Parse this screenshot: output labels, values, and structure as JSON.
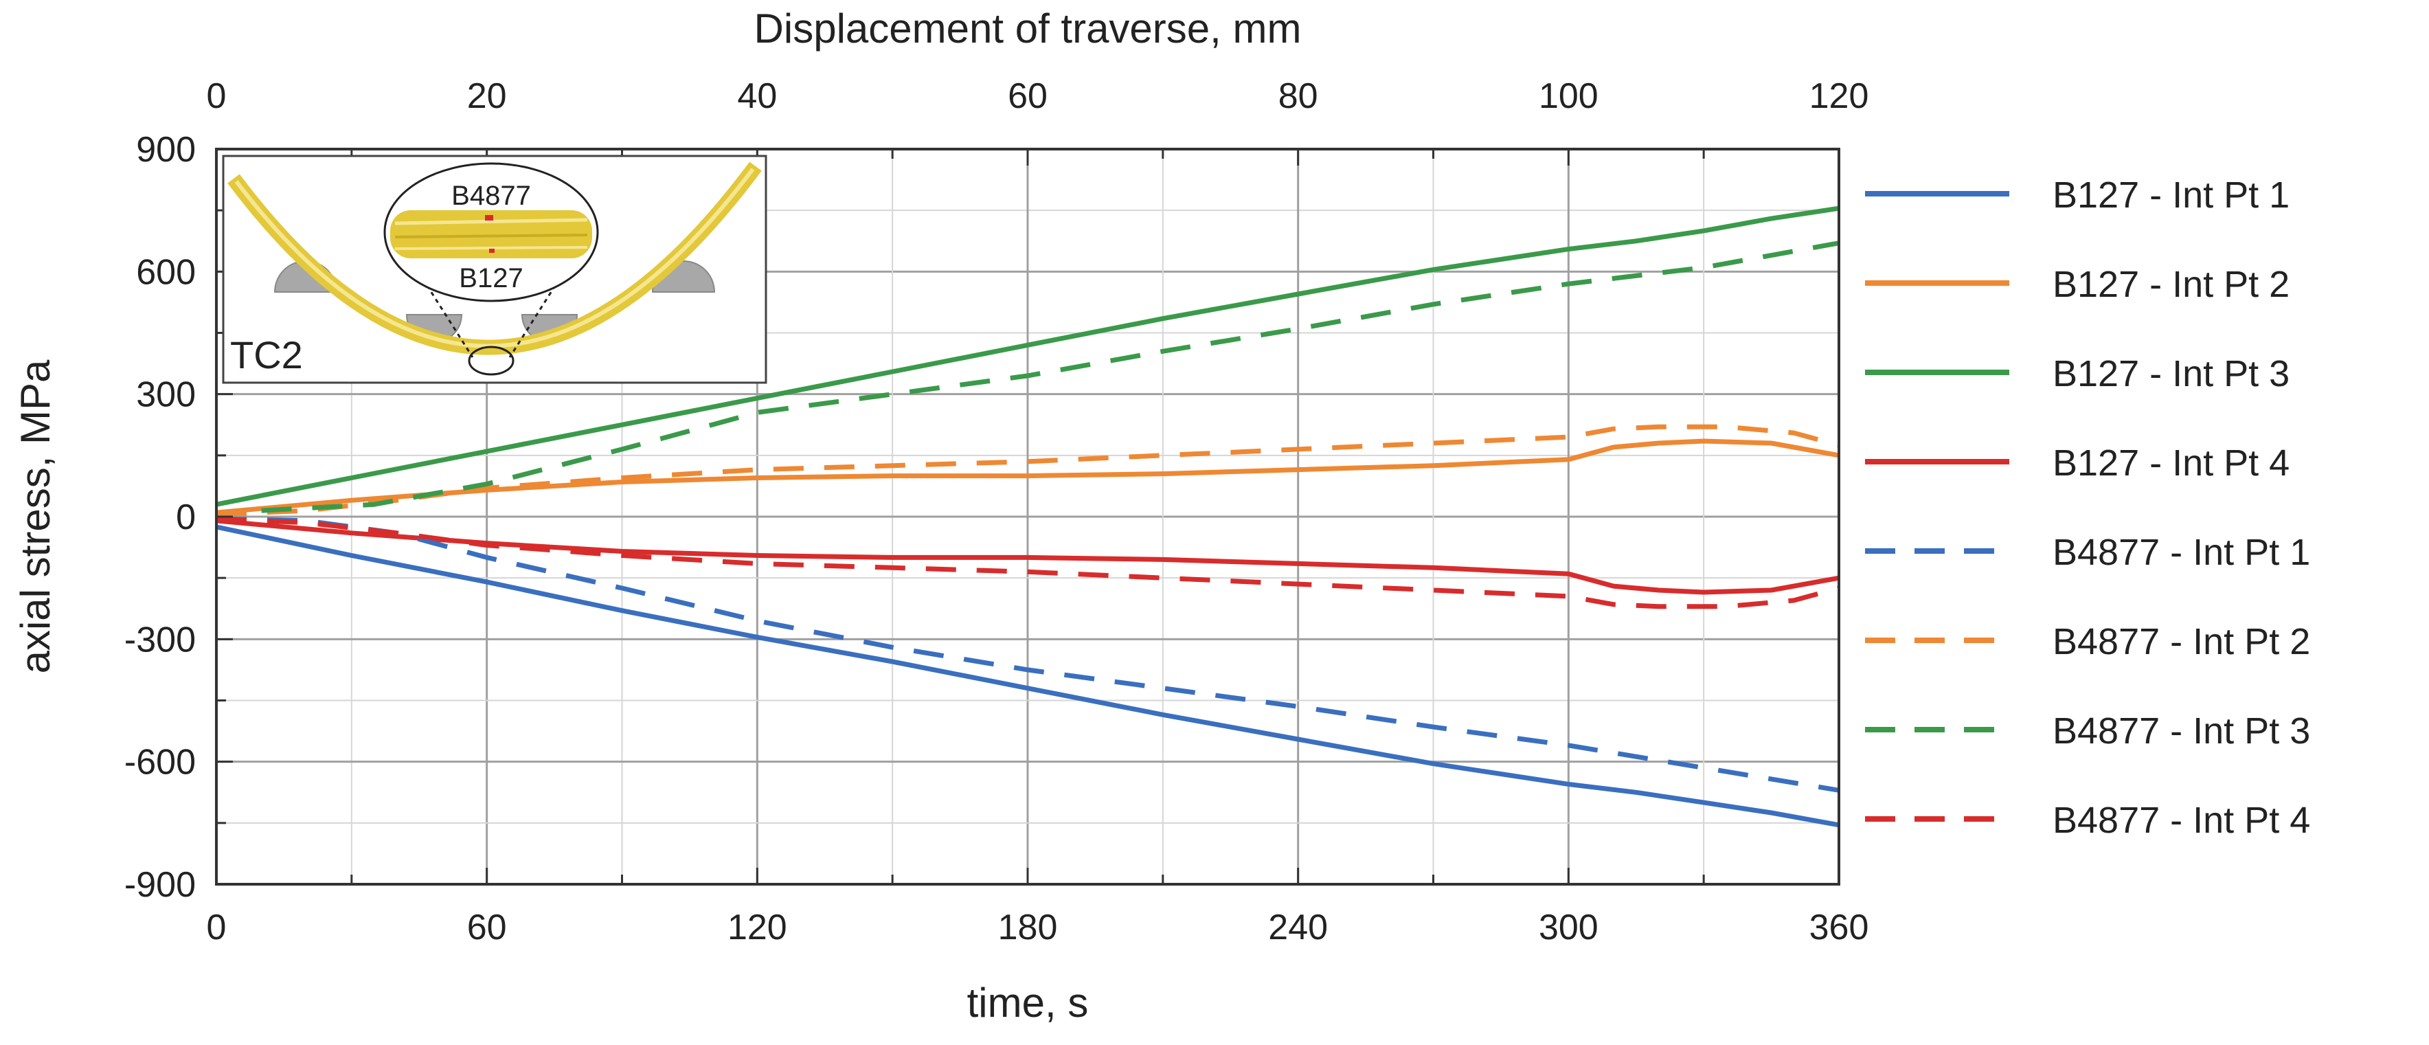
{
  "chart_data": {
    "type": "line",
    "ylabel": "axial stress, MPa",
    "xlabel": "time, s",
    "x2label": "Displacement of traverse, mm",
    "xlim": [
      0,
      360
    ],
    "ylim": [
      -900,
      900
    ],
    "x2lim": [
      0,
      120
    ],
    "xticks": [
      "0",
      "60",
      "120",
      "180",
      "240",
      "300",
      "360"
    ],
    "yticks": [
      "900",
      "600",
      "300",
      "0",
      "-300",
      "-600",
      "-900"
    ],
    "x2ticks": [
      "0",
      "20",
      "40",
      "60",
      "80",
      "100",
      "120"
    ],
    "inset": {
      "label": "TC2",
      "callout_top": "B4877",
      "callout_bottom": "B127"
    },
    "series": [
      {
        "name": "B127 - Int Pt 1",
        "color": "#3a6fbf",
        "dash": "solid",
        "x": [
          0,
          30,
          60,
          90,
          120,
          150,
          180,
          210,
          240,
          270,
          300,
          315,
          330,
          345,
          360
        ],
        "y": [
          -25,
          -95,
          -160,
          -230,
          -295,
          -355,
          -420,
          -485,
          -545,
          -605,
          -655,
          -675,
          -700,
          -725,
          -755
        ]
      },
      {
        "name": "B127 - Int Pt 2",
        "color": "#ee8833",
        "dash": "solid",
        "x": [
          0,
          30,
          60,
          90,
          120,
          150,
          180,
          210,
          240,
          270,
          300,
          310,
          320,
          330,
          345,
          360
        ],
        "y": [
          10,
          40,
          65,
          85,
          95,
          100,
          100,
          105,
          115,
          125,
          140,
          170,
          180,
          185,
          180,
          150
        ]
      },
      {
        "name": "B127 - Int Pt 3",
        "color": "#3a9a4a",
        "dash": "solid",
        "x": [
          0,
          30,
          60,
          90,
          120,
          150,
          180,
          210,
          240,
          270,
          300,
          315,
          330,
          345,
          360
        ],
        "y": [
          30,
          95,
          160,
          225,
          290,
          355,
          420,
          485,
          545,
          605,
          655,
          675,
          700,
          730,
          755
        ]
      },
      {
        "name": "B127 - Int Pt 4",
        "color": "#d82c2c",
        "dash": "solid",
        "x": [
          0,
          30,
          60,
          90,
          120,
          150,
          180,
          210,
          240,
          270,
          300,
          310,
          320,
          330,
          345,
          360
        ],
        "y": [
          -10,
          -40,
          -65,
          -85,
          -95,
          -100,
          -100,
          -105,
          -115,
          -125,
          -140,
          -170,
          -180,
          -185,
          -180,
          -150
        ]
      },
      {
        "name": "B4877 - Int Pt 1",
        "color": "#3a6fbf",
        "dash": "dashed",
        "x": [
          0,
          20,
          40,
          60,
          90,
          120,
          150,
          180,
          210,
          240,
          270,
          300,
          330,
          360
        ],
        "y": [
          -5,
          -10,
          -40,
          -100,
          -175,
          -255,
          -320,
          -375,
          -420,
          -465,
          -515,
          -560,
          -615,
          -670
        ]
      },
      {
        "name": "B4877 - Int Pt 2",
        "color": "#ee8833",
        "dash": "dashed",
        "x": [
          0,
          20,
          40,
          60,
          90,
          120,
          150,
          180,
          210,
          240,
          270,
          300,
          310,
          320,
          335,
          350,
          360
        ],
        "y": [
          5,
          15,
          40,
          70,
          95,
          115,
          125,
          135,
          150,
          165,
          180,
          195,
          215,
          220,
          220,
          205,
          175
        ]
      },
      {
        "name": "B4877 - Int Pt 3",
        "color": "#3a9a4a",
        "dash": "dashed",
        "x": [
          10,
          35,
          60,
          90,
          120,
          150,
          180,
          210,
          240,
          270,
          300,
          330,
          360
        ],
        "y": [
          15,
          30,
          80,
          165,
          255,
          300,
          345,
          405,
          460,
          520,
          570,
          610,
          670
        ]
      },
      {
        "name": "B4877 - Int Pt 4",
        "color": "#d82c2c",
        "dash": "dashed",
        "x": [
          0,
          20,
          40,
          60,
          90,
          120,
          150,
          180,
          210,
          240,
          270,
          300,
          310,
          320,
          335,
          350,
          360
        ],
        "y": [
          -5,
          -15,
          -40,
          -70,
          -95,
          -115,
          -125,
          -135,
          -150,
          -165,
          -180,
          -195,
          -215,
          -220,
          -220,
          -205,
          -175
        ]
      }
    ]
  }
}
